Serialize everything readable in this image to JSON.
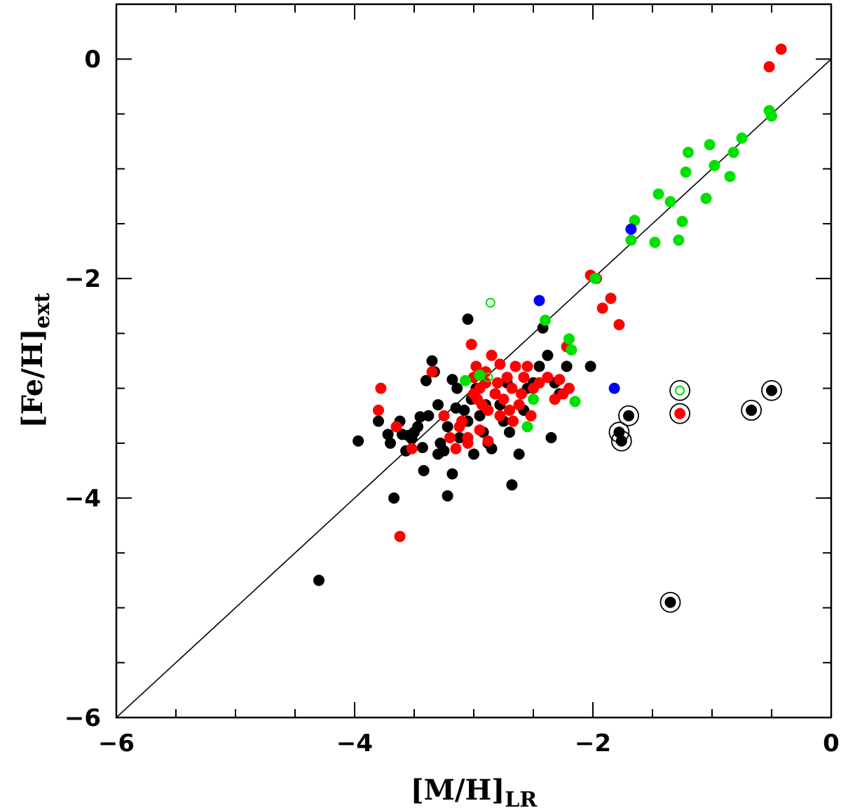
{
  "chart_data": {
    "type": "scatter",
    "title": "",
    "xlabel": "[M/H]",
    "xlabel_sub": "LR",
    "ylabel": "[Fe/H]",
    "ylabel_sub": "ext",
    "xlim": [
      -6,
      0
    ],
    "ylim": [
      -6,
      0.5
    ],
    "x_ticks": [
      -6,
      -4,
      -2,
      0
    ],
    "x_tick_labels": [
      "−6",
      "−4",
      "−2",
      "0"
    ],
    "y_ticks": [
      -6,
      -4,
      -2,
      0
    ],
    "y_tick_labels": [
      "−6",
      "−4",
      "−2",
      "0"
    ],
    "x_minor_step": 0.5,
    "y_minor_step": 0.5,
    "reference_line": {
      "label": "one-to-one",
      "points": [
        [
          -6,
          -6
        ],
        [
          0,
          0
        ]
      ]
    },
    "colors": {
      "black": "#000000",
      "red": "#ff0000",
      "green": "#00e000",
      "blue": "#0000ff"
    },
    "series": [
      {
        "name": "black",
        "color": "#000000",
        "filled": true,
        "points": [
          [
            -4.3,
            -4.75
          ],
          [
            -3.97,
            -3.48
          ],
          [
            -3.8,
            -3.3
          ],
          [
            -3.72,
            -3.42
          ],
          [
            -3.7,
            -3.5
          ],
          [
            -3.67,
            -4.0
          ],
          [
            -3.62,
            -3.3
          ],
          [
            -3.6,
            -3.42
          ],
          [
            -3.57,
            -3.57
          ],
          [
            -3.55,
            -3.43
          ],
          [
            -3.52,
            -3.46
          ],
          [
            -3.5,
            -3.4
          ],
          [
            -3.47,
            -3.35
          ],
          [
            -3.45,
            -3.26
          ],
          [
            -3.43,
            -3.54
          ],
          [
            -3.4,
            -2.93
          ],
          [
            -3.38,
            -3.25
          ],
          [
            -3.35,
            -2.75
          ],
          [
            -3.33,
            -2.85
          ],
          [
            -3.3,
            -3.15
          ],
          [
            -3.28,
            -3.5
          ],
          [
            -3.25,
            -3.57
          ],
          [
            -3.22,
            -3.35
          ],
          [
            -3.18,
            -2.92
          ],
          [
            -3.15,
            -3.18
          ],
          [
            -3.12,
            -3.45
          ],
          [
            -3.08,
            -3.2
          ],
          [
            -3.05,
            -3.3
          ],
          [
            -3.02,
            -3.1
          ],
          [
            -2.98,
            -3.0
          ],
          [
            -2.95,
            -3.25
          ],
          [
            -2.92,
            -3.4
          ],
          [
            -2.88,
            -3.5
          ],
          [
            -2.85,
            -3.55
          ],
          [
            -2.82,
            -3.05
          ],
          [
            -2.78,
            -3.15
          ],
          [
            -2.75,
            -3.3
          ],
          [
            -2.72,
            -2.95
          ],
          [
            -2.7,
            -3.4
          ],
          [
            -2.68,
            -3.88
          ],
          [
            -2.62,
            -3.6
          ],
          [
            -2.58,
            -3.2
          ],
          [
            -2.55,
            -3.0
          ],
          [
            -2.5,
            -2.95
          ],
          [
            -2.45,
            -2.8
          ],
          [
            -2.42,
            -2.45
          ],
          [
            -2.38,
            -2.7
          ],
          [
            -2.35,
            -3.45
          ],
          [
            -2.32,
            -2.95
          ],
          [
            -2.28,
            -3.05
          ],
          [
            -2.22,
            -2.8
          ],
          [
            -2.02,
            -2.8
          ],
          [
            -3.18,
            -3.78
          ],
          [
            -3.22,
            -3.98
          ],
          [
            -3.42,
            -3.75
          ],
          [
            -3.3,
            -3.6
          ],
          [
            -3.0,
            -3.6
          ],
          [
            -2.9,
            -3.15
          ],
          [
            -3.05,
            -2.37
          ],
          [
            -3.14,
            -3.0
          ]
        ]
      },
      {
        "name": "red",
        "color": "#ff0000",
        "filled": true,
        "points": [
          [
            -3.62,
            -4.35
          ],
          [
            -3.78,
            -3.0
          ],
          [
            -3.8,
            -3.2
          ],
          [
            -3.65,
            -3.35
          ],
          [
            -3.52,
            -3.55
          ],
          [
            -3.35,
            -2.85
          ],
          [
            -3.25,
            -3.25
          ],
          [
            -3.2,
            -3.45
          ],
          [
            -3.15,
            -3.55
          ],
          [
            -3.12,
            -3.35
          ],
          [
            -3.1,
            -3.3
          ],
          [
            -3.05,
            -3.45
          ],
          [
            -3.02,
            -2.6
          ],
          [
            -3.0,
            -2.9
          ],
          [
            -2.98,
            -2.8
          ],
          [
            -2.97,
            -3.1
          ],
          [
            -2.95,
            -3.0
          ],
          [
            -2.93,
            -3.15
          ],
          [
            -2.9,
            -2.85
          ],
          [
            -2.88,
            -3.2
          ],
          [
            -2.85,
            -2.7
          ],
          [
            -2.82,
            -3.05
          ],
          [
            -2.8,
            -2.95
          ],
          [
            -2.78,
            -3.25
          ],
          [
            -2.75,
            -3.1
          ],
          [
            -2.72,
            -2.9
          ],
          [
            -2.7,
            -3.2
          ],
          [
            -2.68,
            -3.0
          ],
          [
            -2.65,
            -2.8
          ],
          [
            -2.62,
            -3.15
          ],
          [
            -2.6,
            -3.05
          ],
          [
            -2.58,
            -2.9
          ],
          [
            -2.55,
            -2.8
          ],
          [
            -2.52,
            -3.25
          ],
          [
            -2.5,
            -3.0
          ],
          [
            -2.45,
            -2.95
          ],
          [
            -2.38,
            -2.9
          ],
          [
            -2.32,
            -3.1
          ],
          [
            -2.28,
            -2.92
          ],
          [
            -2.25,
            -3.05
          ],
          [
            -2.22,
            -2.62
          ],
          [
            -2.2,
            -3.0
          ],
          [
            -2.02,
            -1.97
          ],
          [
            -1.97,
            -2.0
          ],
          [
            -1.92,
            -2.27
          ],
          [
            -1.85,
            -2.18
          ],
          [
            -1.78,
            -2.42
          ],
          [
            -0.52,
            -0.07
          ],
          [
            -0.42,
            0.09
          ],
          [
            -3.05,
            -3.5
          ],
          [
            -2.95,
            -3.38
          ],
          [
            -2.88,
            -3.48
          ],
          [
            -2.67,
            -3.3
          ],
          [
            -2.9,
            -2.95
          ],
          [
            -3.0,
            -3.05
          ],
          [
            -2.78,
            -2.78
          ]
        ]
      },
      {
        "name": "green",
        "color": "#00e000",
        "filled": true,
        "points": [
          [
            -3.07,
            -2.93
          ],
          [
            -2.95,
            -2.88
          ],
          [
            -2.5,
            -3.1
          ],
          [
            -2.55,
            -3.35
          ],
          [
            -2.4,
            -2.38
          ],
          [
            -2.2,
            -2.55
          ],
          [
            -2.18,
            -2.65
          ],
          [
            -2.15,
            -3.12
          ],
          [
            -1.98,
            -2.0
          ],
          [
            -1.68,
            -1.65
          ],
          [
            -1.65,
            -1.47
          ],
          [
            -1.48,
            -1.67
          ],
          [
            -1.45,
            -1.23
          ],
          [
            -1.35,
            -1.3
          ],
          [
            -1.28,
            -1.65
          ],
          [
            -1.25,
            -1.48
          ],
          [
            -1.22,
            -1.03
          ],
          [
            -1.2,
            -0.85
          ],
          [
            -1.05,
            -1.27
          ],
          [
            -1.02,
            -0.78
          ],
          [
            -0.98,
            -0.97
          ],
          [
            -0.85,
            -1.07
          ],
          [
            -0.82,
            -0.85
          ],
          [
            -0.75,
            -0.72
          ],
          [
            -0.52,
            -0.47
          ],
          [
            -0.5,
            -0.52
          ]
        ]
      },
      {
        "name": "blue",
        "color": "#0000ff",
        "filled": true,
        "points": [
          [
            -2.45,
            -2.2
          ],
          [
            -1.82,
            -3.0
          ],
          [
            -1.68,
            -1.55
          ]
        ]
      },
      {
        "name": "green-open",
        "color": "#00e000",
        "filled": false,
        "points": [
          [
            -2.86,
            -2.22
          ],
          [
            -2.88,
            -2.9
          ],
          [
            -1.27,
            -3.02
          ]
        ]
      },
      {
        "name": "circled",
        "color": "#000000",
        "filled": true,
        "circled": true,
        "points": [
          [
            -1.7,
            -3.25
          ],
          [
            -1.78,
            -3.4
          ],
          [
            -1.76,
            -3.48
          ],
          [
            -1.35,
            -4.95
          ],
          [
            -1.27,
            -3.02
          ],
          [
            -1.27,
            -3.23
          ],
          [
            -0.67,
            -3.2
          ],
          [
            -0.5,
            -3.02
          ]
        ]
      }
    ]
  }
}
